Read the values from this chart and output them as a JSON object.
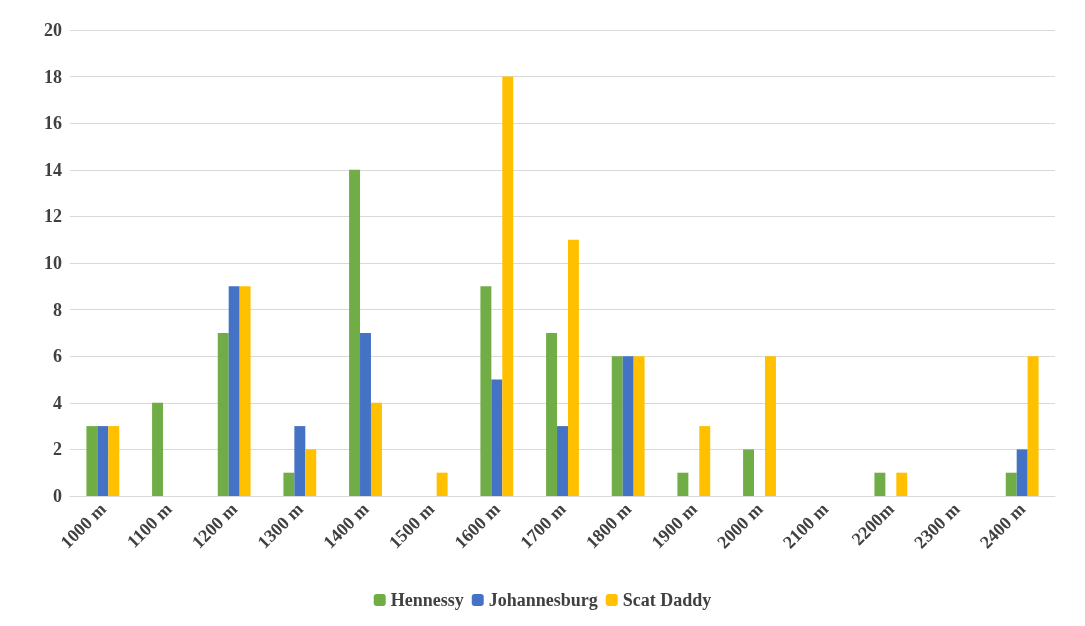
{
  "chart_data": {
    "type": "bar",
    "categories": [
      "1000 m",
      "1100 m",
      "1200 m",
      "1300 m",
      "1400 m",
      "1500 m",
      "1600 m",
      "1700 m",
      "1800 m",
      "1900 m",
      "2000 m",
      "2100 m",
      "2200m",
      "2300 m",
      "2400 m"
    ],
    "series": [
      {
        "name": "Hennessy",
        "color": "#70ad47",
        "values": [
          3,
          4,
          7,
          1,
          14,
          0,
          9,
          7,
          6,
          1,
          2,
          0,
          1,
          0,
          1
        ]
      },
      {
        "name": "Johannesburg",
        "color": "#4472c4",
        "values": [
          3,
          0,
          9,
          3,
          7,
          0,
          5,
          3,
          6,
          0,
          0,
          0,
          0,
          0,
          2
        ]
      },
      {
        "name": "Scat Daddy",
        "color": "#ffc000",
        "values": [
          3,
          0,
          9,
          2,
          4,
          1,
          18,
          11,
          6,
          3,
          6,
          0,
          1,
          0,
          6
        ]
      }
    ],
    "ylim": [
      0,
      20
    ],
    "yticks": [
      0,
      2,
      4,
      6,
      8,
      10,
      12,
      14,
      16,
      18,
      20
    ],
    "grid": "y",
    "legend": "bottom"
  }
}
